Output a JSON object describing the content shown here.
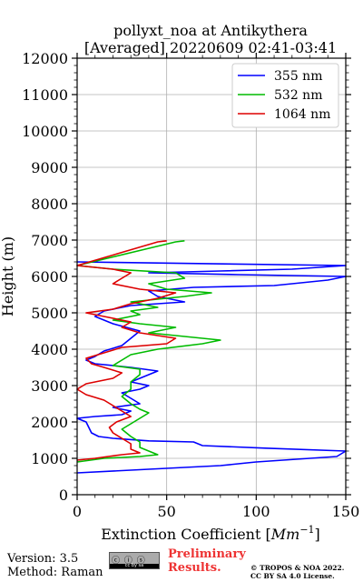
{
  "chart_data": {
    "type": "line",
    "title": "pollyxt_noa at Antikythera",
    "subtitle": "[Averaged] 20220609 02:41-03:41",
    "xlabel": "Extinction Coefficient [",
    "xlabel_unit": "Mm",
    "xlabel_exp": "−1",
    "xlabel_close": "]",
    "ylabel": "Height (m)",
    "xlim": [
      0,
      150
    ],
    "ylim": [
      0,
      12000
    ],
    "xticks": [
      0,
      50,
      100,
      150
    ],
    "yticks": [
      0,
      1000,
      2000,
      3000,
      4000,
      5000,
      6000,
      7000,
      8000,
      9000,
      10000,
      11000,
      12000
    ],
    "grid": true,
    "legend_position": "top-right",
    "series": [
      {
        "name": "355 nm",
        "color": "#0000ff",
        "points": [
          [
            0,
            600
          ],
          [
            40,
            700
          ],
          [
            80,
            800
          ],
          [
            100,
            900
          ],
          [
            145,
            1050
          ],
          [
            150,
            1200
          ],
          [
            105,
            1280
          ],
          [
            70,
            1350
          ],
          [
            65,
            1450
          ],
          [
            40,
            1480
          ],
          [
            20,
            1550
          ],
          [
            12,
            1600
          ],
          [
            8,
            1700
          ],
          [
            5,
            2000
          ],
          [
            0,
            2100
          ],
          [
            10,
            2150
          ],
          [
            25,
            2200
          ],
          [
            30,
            2300
          ],
          [
            20,
            2400
          ],
          [
            35,
            2500
          ],
          [
            30,
            2650
          ],
          [
            25,
            2800
          ],
          [
            35,
            2900
          ],
          [
            40,
            3000
          ],
          [
            30,
            3100
          ],
          [
            35,
            3200
          ],
          [
            40,
            3300
          ],
          [
            45,
            3400
          ],
          [
            30,
            3500
          ],
          [
            10,
            3600
          ],
          [
            5,
            3700
          ],
          [
            10,
            3800
          ],
          [
            15,
            3950
          ],
          [
            25,
            4100
          ],
          [
            30,
            4300
          ],
          [
            35,
            4500
          ],
          [
            20,
            4700
          ],
          [
            10,
            4900
          ],
          [
            15,
            5050
          ],
          [
            30,
            5200
          ],
          [
            60,
            5300
          ],
          [
            45,
            5450
          ],
          [
            40,
            5600
          ],
          [
            65,
            5700
          ],
          [
            110,
            5750
          ],
          [
            140,
            5900
          ],
          [
            150,
            6000
          ],
          [
            90,
            6050
          ],
          [
            40,
            6100
          ],
          [
            80,
            6150
          ],
          [
            120,
            6200
          ],
          [
            150,
            6300
          ],
          [
            0,
            6400
          ]
        ]
      },
      {
        "name": "532 nm",
        "color": "#00bb00",
        "points": [
          [
            0,
            900
          ],
          [
            15,
            1000
          ],
          [
            35,
            1050
          ],
          [
            45,
            1100
          ],
          [
            40,
            1200
          ],
          [
            35,
            1300
          ],
          [
            35,
            1450
          ],
          [
            30,
            1600
          ],
          [
            25,
            1800
          ],
          [
            30,
            1950
          ],
          [
            35,
            2100
          ],
          [
            40,
            2250
          ],
          [
            35,
            2350
          ],
          [
            30,
            2500
          ],
          [
            25,
            2700
          ],
          [
            30,
            2900
          ],
          [
            30,
            3100
          ],
          [
            35,
            3300
          ],
          [
            35,
            3450
          ],
          [
            20,
            3550
          ],
          [
            25,
            3700
          ],
          [
            30,
            3850
          ],
          [
            45,
            4000
          ],
          [
            70,
            4150
          ],
          [
            80,
            4250
          ],
          [
            60,
            4350
          ],
          [
            40,
            4450
          ],
          [
            55,
            4600
          ],
          [
            35,
            4700
          ],
          [
            20,
            4800
          ],
          [
            35,
            4950
          ],
          [
            30,
            5050
          ],
          [
            45,
            5150
          ],
          [
            30,
            5300
          ],
          [
            60,
            5450
          ],
          [
            75,
            5550
          ],
          [
            50,
            5650
          ],
          [
            40,
            5800
          ],
          [
            60,
            5950
          ],
          [
            55,
            6100
          ],
          [
            20,
            6200
          ],
          [
            0,
            6300
          ],
          [
            55,
            6950
          ],
          [
            60,
            6980
          ]
        ]
      },
      {
        "name": "1064 nm",
        "color": "#dd0000",
        "points": [
          [
            0,
            950
          ],
          [
            10,
            1000
          ],
          [
            25,
            1100
          ],
          [
            35,
            1150
          ],
          [
            30,
            1250
          ],
          [
            30,
            1400
          ],
          [
            25,
            1550
          ],
          [
            20,
            1700
          ],
          [
            18,
            1850
          ],
          [
            22,
            2000
          ],
          [
            30,
            2150
          ],
          [
            25,
            2300
          ],
          [
            20,
            2450
          ],
          [
            15,
            2600
          ],
          [
            5,
            2750
          ],
          [
            0,
            2900
          ],
          [
            5,
            3050
          ],
          [
            20,
            3200
          ],
          [
            25,
            3350
          ],
          [
            15,
            3500
          ],
          [
            8,
            3600
          ],
          [
            5,
            3750
          ],
          [
            15,
            3900
          ],
          [
            25,
            4050
          ],
          [
            50,
            4150
          ],
          [
            55,
            4300
          ],
          [
            35,
            4450
          ],
          [
            25,
            4600
          ],
          [
            30,
            4750
          ],
          [
            15,
            4900
          ],
          [
            5,
            5000
          ],
          [
            20,
            5100
          ],
          [
            30,
            5250
          ],
          [
            45,
            5400
          ],
          [
            55,
            5550
          ],
          [
            35,
            5650
          ],
          [
            20,
            5800
          ],
          [
            25,
            5950
          ],
          [
            30,
            6100
          ],
          [
            20,
            6200
          ],
          [
            0,
            6300
          ],
          [
            45,
            6950
          ],
          [
            50,
            6980
          ]
        ]
      }
    ]
  },
  "footer": {
    "version": "Version: 3.5",
    "method": "Method: Raman",
    "license_badge": "cc by sa",
    "preliminary_line1": "Preliminary",
    "preliminary_line2": "Results.",
    "copyright_line1": "© TROPOS & NOA 2022.",
    "copyright_line2": "CC BY SA 4.0 License."
  }
}
